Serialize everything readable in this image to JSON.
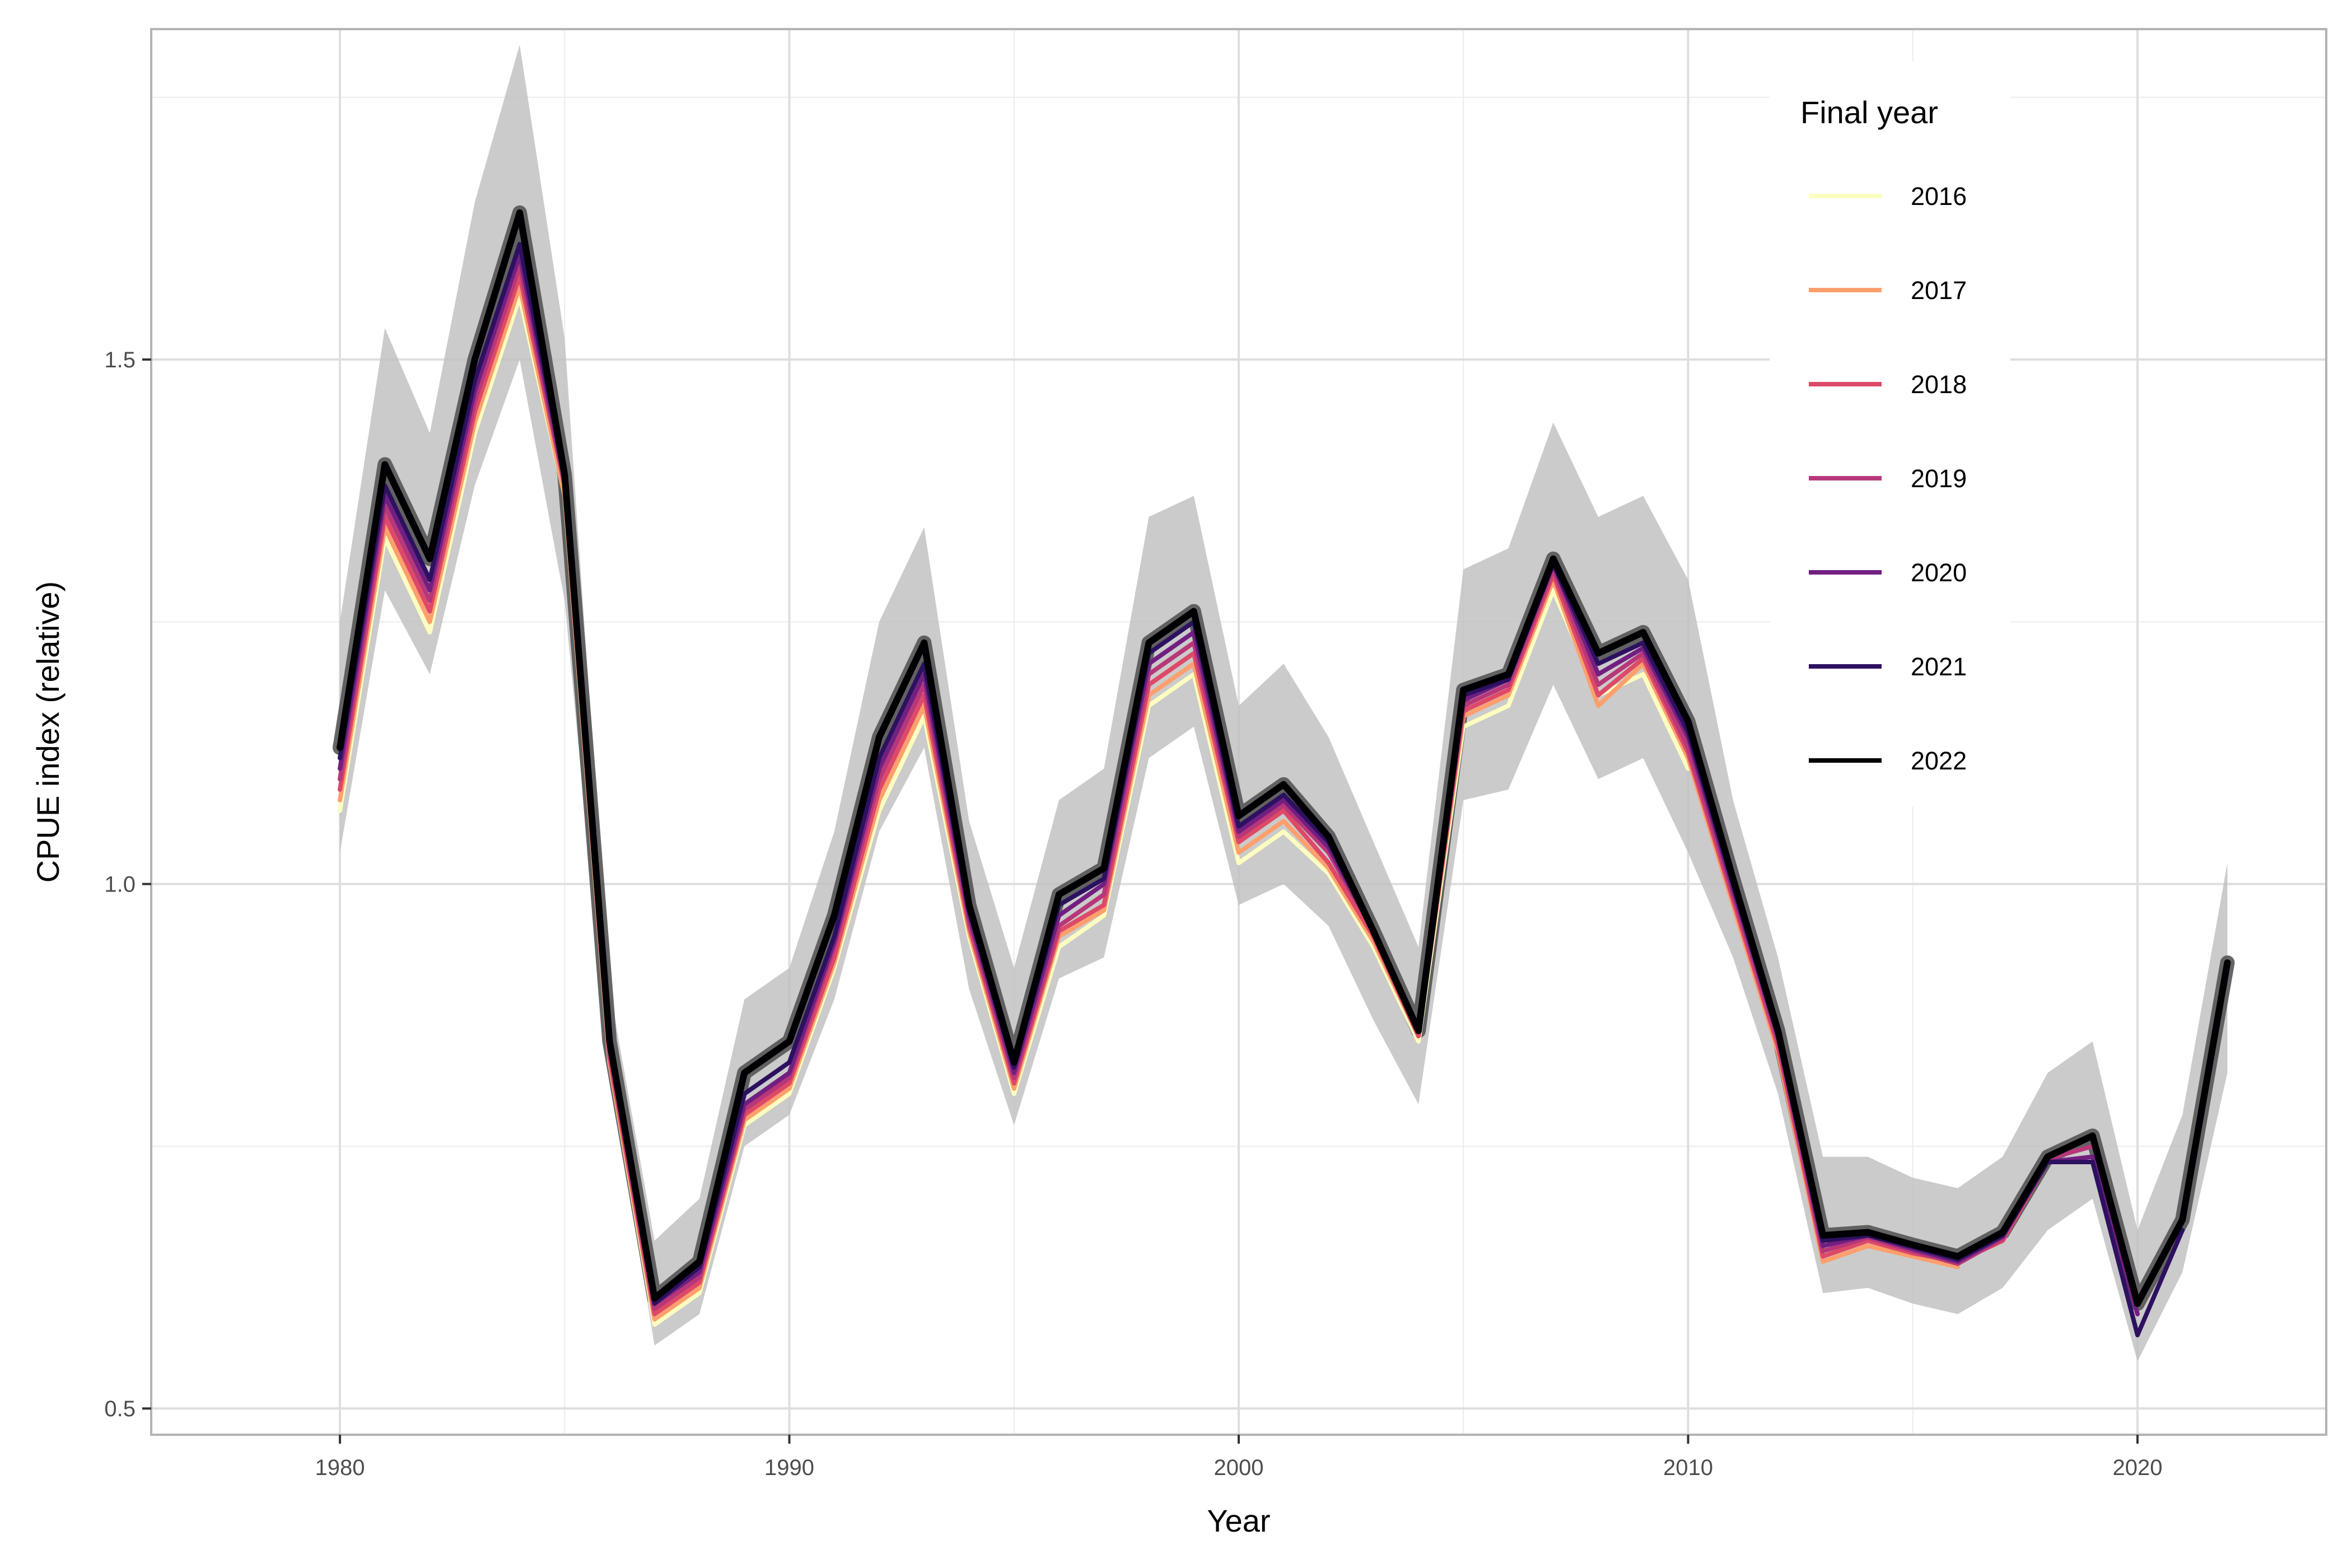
{
  "chart_data": {
    "type": "line",
    "title": "",
    "xlabel": "Year",
    "ylabel": "CPUE index (relative)",
    "xlim": [
      1975.8,
      2024.2
    ],
    "ylim": [
      0.475,
      1.815
    ],
    "x_ticks": [
      "1980",
      "1990",
      "2000",
      "2010",
      "2020"
    ],
    "x_tick_values": [
      1980,
      1990,
      2000,
      2010,
      2020
    ],
    "y_ticks": [
      "0.5",
      "1.0",
      "1.5"
    ],
    "y_tick_values": [
      0.5,
      1.0,
      1.5
    ],
    "grid": true,
    "legend": {
      "title": "Final year",
      "position": "top-right"
    },
    "x": [
      1980,
      1981,
      1982,
      1983,
      1984,
      1985,
      1986,
      1987,
      1988,
      1989,
      1990,
      1991,
      1992,
      1993,
      1994,
      1995,
      1996,
      1997,
      1998,
      1999,
      2000,
      2001,
      2002,
      2003,
      2004,
      2005,
      2006,
      2007,
      2008,
      2009,
      2010,
      2011,
      2012,
      2013,
      2014,
      2015,
      2016,
      2017,
      2018,
      2019,
      2020,
      2021,
      2022
    ],
    "series": [
      {
        "name": "2016",
        "color": "#fcfdbf",
        "values": [
          1.07,
          1.33,
          1.24,
          1.43,
          1.56,
          1.37,
          0.83,
          0.58,
          0.61,
          0.77,
          0.8,
          0.92,
          1.07,
          1.16,
          0.95,
          0.8,
          0.94,
          0.97,
          1.17,
          1.2,
          1.02,
          1.05,
          1.01,
          0.94,
          0.85,
          1.15,
          1.17,
          1.28,
          1.18,
          1.2,
          1.11,
          null,
          null,
          null,
          null,
          null,
          null,
          null,
          null,
          null,
          null,
          null,
          null
        ]
      },
      {
        "name": "2017",
        "color": "#fe9f6d",
        "values": [
          1.08,
          1.34,
          1.25,
          1.44,
          1.57,
          1.37,
          0.83,
          0.585,
          0.615,
          0.775,
          0.805,
          0.925,
          1.08,
          1.17,
          0.955,
          0.805,
          0.95,
          0.975,
          1.18,
          1.21,
          1.03,
          1.06,
          1.015,
          0.945,
          0.855,
          1.16,
          1.18,
          1.29,
          1.17,
          1.21,
          1.12,
          0.98,
          0.84,
          0.64,
          0.655,
          0.645,
          0.635,
          null,
          null,
          null,
          null,
          null,
          null
        ]
      },
      {
        "name": "2018",
        "color": "#de4968",
        "values": [
          1.09,
          1.35,
          1.26,
          1.45,
          1.58,
          1.38,
          0.835,
          0.59,
          0.62,
          0.78,
          0.81,
          0.93,
          1.09,
          1.18,
          0.96,
          0.81,
          0.955,
          0.98,
          1.19,
          1.22,
          1.04,
          1.07,
          1.02,
          0.95,
          0.855,
          1.165,
          1.185,
          1.295,
          1.18,
          1.215,
          1.125,
          0.985,
          0.845,
          0.645,
          0.66,
          0.648,
          0.64,
          0.66,
          0.735,
          null,
          null,
          null,
          null
        ]
      },
      {
        "name": "2019",
        "color": "#b73779",
        "values": [
          1.1,
          1.36,
          1.27,
          1.46,
          1.59,
          1.38,
          0.84,
          0.595,
          0.625,
          0.785,
          0.815,
          0.94,
          1.1,
          1.19,
          0.965,
          0.815,
          0.96,
          0.99,
          1.2,
          1.23,
          1.045,
          1.075,
          1.03,
          0.955,
          0.86,
          1.17,
          1.19,
          1.3,
          1.19,
          1.22,
          1.13,
          0.99,
          0.85,
          0.65,
          0.663,
          0.65,
          0.638,
          0.662,
          0.738,
          0.75,
          null,
          null,
          null
        ]
      },
      {
        "name": "2020",
        "color": "#721f81",
        "values": [
          1.11,
          1.37,
          1.28,
          1.47,
          1.6,
          1.385,
          0.845,
          0.6,
          0.63,
          0.79,
          0.82,
          0.945,
          1.11,
          1.2,
          0.97,
          0.82,
          0.97,
          1.0,
          1.21,
          1.24,
          1.05,
          1.08,
          1.035,
          0.955,
          0.86,
          1.175,
          1.195,
          1.305,
          1.2,
          1.225,
          1.14,
          0.995,
          0.855,
          0.655,
          0.665,
          0.652,
          0.64,
          0.664,
          0.735,
          0.74,
          0.59,
          null,
          null
        ]
      },
      {
        "name": "2021",
        "color": "#2d1160",
        "values": [
          1.12,
          1.38,
          1.29,
          1.48,
          1.61,
          1.39,
          0.85,
          0.6,
          0.635,
          0.8,
          0.83,
          0.95,
          1.12,
          1.21,
          0.975,
          0.825,
          0.98,
          1.005,
          1.22,
          1.25,
          1.055,
          1.085,
          1.04,
          0.955,
          0.86,
          1.18,
          1.195,
          1.305,
          1.21,
          1.23,
          1.145,
          1.0,
          0.855,
          0.66,
          0.665,
          0.654,
          0.642,
          0.665,
          0.735,
          0.735,
          0.57,
          0.67,
          null
        ]
      },
      {
        "name": "2022",
        "color": "#000004",
        "values": [
          1.13,
          1.4,
          1.31,
          1.5,
          1.64,
          1.39,
          0.85,
          0.605,
          0.64,
          0.82,
          0.85,
          0.97,
          1.14,
          1.23,
          0.98,
          0.83,
          0.99,
          1.015,
          1.23,
          1.26,
          1.065,
          1.095,
          1.045,
          0.955,
          0.86,
          1.185,
          1.2,
          1.31,
          1.22,
          1.24,
          1.155,
          1.005,
          0.86,
          0.665,
          0.668,
          0.656,
          0.645,
          0.668,
          0.74,
          0.76,
          0.6,
          0.68,
          0.925
        ]
      }
    ],
    "ribbon": {
      "color": "#bebebe",
      "lower": [
        1.03,
        1.28,
        1.2,
        1.38,
        1.5,
        1.27,
        0.82,
        0.56,
        0.59,
        0.75,
        0.78,
        0.89,
        1.05,
        1.13,
        0.9,
        0.77,
        0.91,
        0.93,
        1.12,
        1.15,
        0.98,
        1.0,
        0.96,
        0.87,
        0.79,
        1.08,
        1.09,
        1.19,
        1.1,
        1.12,
        1.03,
        0.93,
        0.8,
        0.61,
        0.615,
        0.6,
        0.59,
        0.615,
        0.67,
        0.7,
        0.545,
        0.63,
        0.82
      ],
      "upper": [
        1.25,
        1.53,
        1.43,
        1.65,
        1.8,
        1.52,
        0.9,
        0.66,
        0.7,
        0.89,
        0.92,
        1.05,
        1.25,
        1.34,
        1.06,
        0.92,
        1.08,
        1.11,
        1.35,
        1.37,
        1.17,
        1.21,
        1.14,
        1.04,
        0.94,
        1.3,
        1.32,
        1.44,
        1.35,
        1.37,
        1.29,
        1.08,
        0.93,
        0.74,
        0.74,
        0.72,
        0.71,
        0.74,
        0.82,
        0.85,
        0.67,
        0.78,
        1.02
      ]
    },
    "highlight_series": {
      "name": "2022",
      "color": "#555555"
    }
  }
}
